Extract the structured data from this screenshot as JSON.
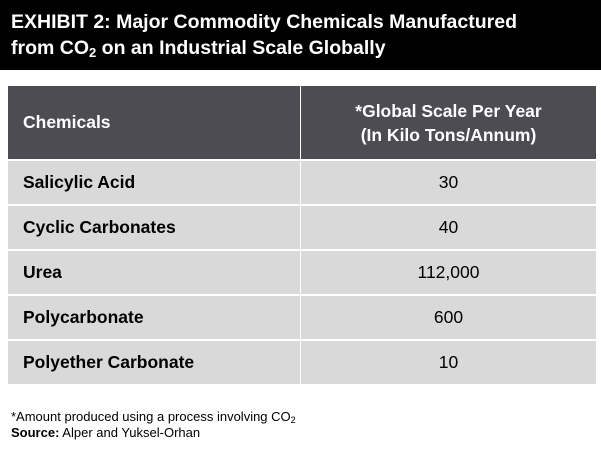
{
  "exhibit": {
    "title_line1": "EXHIBIT 2: Major Commodity Chemicals Manufactured",
    "title_line2_prefix": "from CO",
    "title_line2_sub": "2",
    "title_line2_suffix": " on an Industrial Scale Globally"
  },
  "table": {
    "header_chemicals": "Chemicals",
    "header_scale_line1": "*Global Scale Per Year",
    "header_scale_line2": "(In Kilo Tons/Annum)",
    "rows": [
      {
        "chemical": "Salicylic Acid",
        "scale": "30"
      },
      {
        "chemical": "Cyclic Carbonates",
        "scale": "40"
      },
      {
        "chemical": "Urea",
        "scale": "112,000"
      },
      {
        "chemical": "Polycarbonate",
        "scale": "600"
      },
      {
        "chemical": "Polyether Carbonate",
        "scale": "10"
      }
    ]
  },
  "footnote": {
    "note_prefix": "*Amount produced using a process involving CO",
    "note_sub": "2",
    "source_label": "Source:",
    "source_text": " Alper and Yuksel-Orhan"
  },
  "colors": {
    "title_bg": "#000000",
    "header_bg": "#4d4c52",
    "row_bg": "#d9d9d9"
  }
}
